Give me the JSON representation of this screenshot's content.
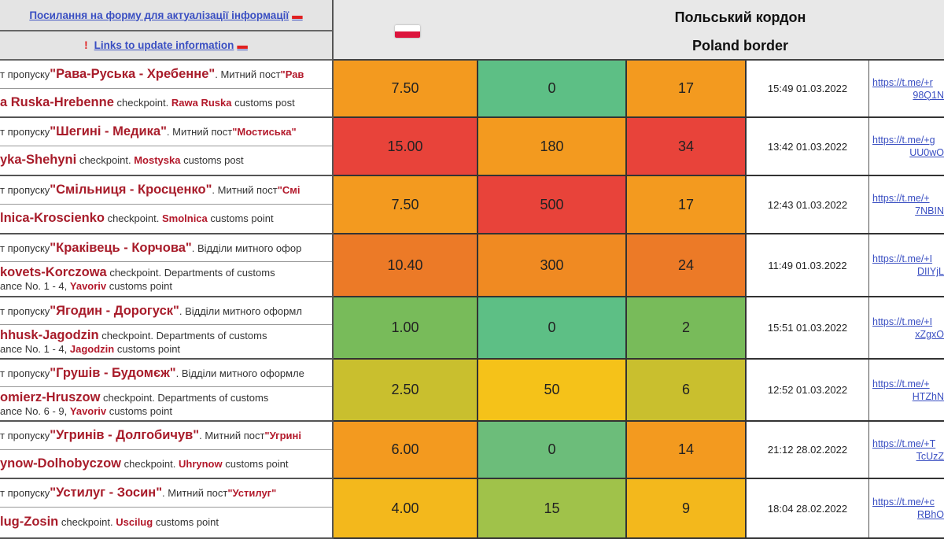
{
  "header": {
    "ua_link": "Посилання на форму для актуалізації інформації",
    "en_link": "Links to update information",
    "exclaim": "!",
    "title_ua": "Польський кордон",
    "title_en": "Poland border"
  },
  "colors": {
    "red": "#e8433a",
    "orange": "#f39a1f",
    "dark_orange": "#ec7a27",
    "green": "#5dbf82",
    "light_green": "#78bb5a",
    "yellow": "#f5c219",
    "olive": "#c9bf2e"
  },
  "rows": [
    {
      "ua": {
        "prefix": "т пропуску ",
        "name": "\"Рава-Руська - Хребенне\"",
        "mid": ". Митний пост ",
        "post": "\"Рав"
      },
      "en": {
        "name": "a Ruska-Hrebenne",
        "mid": " checkpoint. ",
        "post": "Rawa Ruska",
        "tail": " customs post",
        "l2pre": "",
        "l2post": "",
        "l2tail": ""
      },
      "v1": "7.50",
      "v2": "0",
      "v3": "17",
      "c1": "#f39a1f",
      "c2": "#5dbf85",
      "c3": "#f39a1f",
      "time": "15:49 01.03.2022",
      "link1": "https://t.me/+r",
      "link2": "98Q1N"
    },
    {
      "ua": {
        "prefix": "т пропуску ",
        "name": "\"Шегині - Медика\"",
        "mid": ". Митний пост ",
        "post": "\"Мостиська\""
      },
      "en": {
        "name": "yka-Shehyni",
        "mid": " checkpoint. ",
        "post": "Mostyska",
        "tail": " customs post",
        "l2pre": "",
        "l2post": "",
        "l2tail": ""
      },
      "v1": "15.00",
      "v2": "180",
      "v3": "34",
      "c1": "#e8433a",
      "c2": "#f39a1f",
      "c3": "#e8433a",
      "time": "13:42 01.03.2022",
      "link1": "https://t.me/+g",
      "link2": "UU0wO"
    },
    {
      "ua": {
        "prefix": "т пропуску ",
        "name": "\"Смільниця - Кросценко\"",
        "mid": ". Митний пост ",
        "post": "\"Смі"
      },
      "en": {
        "name": "lnica-Kroscienko",
        "mid": " checkpoint. ",
        "post": "Smolnica",
        "tail": " customs point",
        "l2pre": "",
        "l2post": "",
        "l2tail": ""
      },
      "v1": "7.50",
      "v2": "500",
      "v3": "17",
      "c1": "#f39a1f",
      "c2": "#e8433a",
      "c3": "#f39a1f",
      "time": "12:43 01.03.2022",
      "link1": "https://t.me/+",
      "link2": "7NBIN"
    },
    {
      "ua": {
        "prefix": "т пропуску ",
        "name": "\"Краківець - Корчова\"",
        "mid": ". Відділи митного офор",
        "post": ""
      },
      "en": {
        "name": "kovets-Korczowa",
        "mid": " checkpoint. Departments of customs",
        "post": "",
        "tail": "",
        "l2pre": "ance No. 1 - 4, ",
        "l2post": "Yavoriv",
        "l2tail": " customs point"
      },
      "v1": "10.40",
      "v2": "300",
      "v3": "24",
      "c1": "#ec7a27",
      "c2": "#f08a22",
      "c3": "#ec7a27",
      "time": "11:49 01.03.2022",
      "link1": "https://t.me/+I",
      "link2": "DIIYjL"
    },
    {
      "ua": {
        "prefix": "т пропуску ",
        "name": "\"Ягодин - Дорогуск\"",
        "mid": ". Відділи митного оформл",
        "post": ""
      },
      "en": {
        "name": "hhusk-Jagodzin",
        "mid": " checkpoint. Departments of customs",
        "post": "",
        "tail": "",
        "l2pre": "ance No. 1 - 4, ",
        "l2post": "Jagodzin",
        "l2tail": " customs point"
      },
      "v1": "1.00",
      "v2": "0",
      "v3": "2",
      "c1": "#78bb5a",
      "c2": "#5dbf85",
      "c3": "#78bb5a",
      "time": "15:51 01.03.2022",
      "link1": "https://t.me/+I",
      "link2": "xZgxO"
    },
    {
      "ua": {
        "prefix": "т пропуску ",
        "name": "\"Грушів - Будомєж\"",
        "mid": ". Відділи митного оформле",
        "post": ""
      },
      "en": {
        "name": "omierz-Hruszow",
        "mid": " checkpoint. Departments of customs",
        "post": "",
        "tail": "",
        "l2pre": "ance No. 6 - 9, ",
        "l2post": "Yavoriv",
        "l2tail": " customs point"
      },
      "v1": "2.50",
      "v2": "50",
      "v3": "6",
      "c1": "#c9bf2e",
      "c2": "#f5c219",
      "c3": "#c9bf2e",
      "time": "12:52 01.03.2022",
      "link1": "https://t.me/+",
      "link2": "HTZhN"
    },
    {
      "ua": {
        "prefix": "т пропуску ",
        "name": "\"Угринів - Долгобичув\"",
        "mid": ". Митний пост ",
        "post": "\"Угрині"
      },
      "en": {
        "name": "ynow-Dolhobyczow",
        "mid": " checkpoint. ",
        "post": "Uhrynow",
        "tail": " customs point",
        "l2pre": "",
        "l2post": "",
        "l2tail": ""
      },
      "v1": "6.00",
      "v2": "0",
      "v3": "14",
      "c1": "#f39a1f",
      "c2": "#6cbd7a",
      "c3": "#f39a1f",
      "time": "21:12 28.02.2022",
      "link1": "https://t.me/+T",
      "link2": "TcUzZ"
    },
    {
      "ua": {
        "prefix": "т пропуску ",
        "name": "\"Устилуг - Зосин\"",
        "mid": ". Митний пост ",
        "post": "\"Устилуг\""
      },
      "en": {
        "name": "lug-Zosin",
        "mid": " checkpoint. ",
        "post": "Uscilug",
        "tail": " customs point",
        "l2pre": "",
        "l2post": "",
        "l2tail": ""
      },
      "v1": "4.00",
      "v2": "15",
      "v3": "9",
      "c1": "#f3b81c",
      "c2": "#a0c24a",
      "c3": "#f3b81c",
      "time": "18:04 28.02.2022",
      "link1": "https://t.me/+c",
      "link2": "RBhO"
    }
  ]
}
